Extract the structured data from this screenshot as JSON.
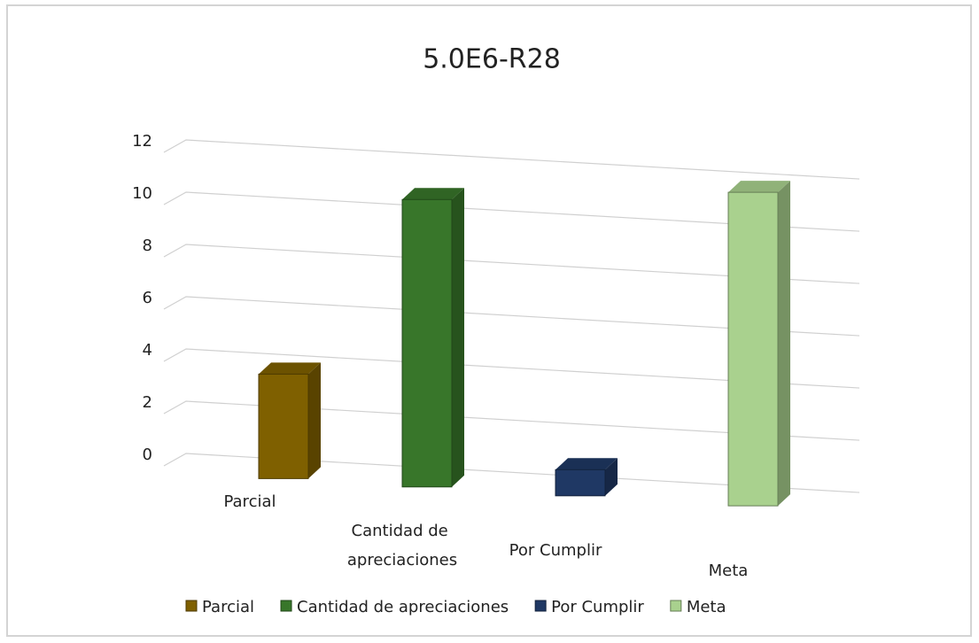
{
  "chart_data": {
    "type": "bar3d",
    "title": "5.0E6-R28",
    "categories": [
      "Parcial",
      "Cantidad de apreciaciones",
      "Por Cumplir",
      "Meta"
    ],
    "series": [
      {
        "name": "Parcial",
        "color": "#7f6000",
        "values": [
          4,
          null,
          null,
          null
        ]
      },
      {
        "name": "Cantidad de apreciaciones",
        "color": "#38762a",
        "values": [
          null,
          11,
          null,
          null
        ]
      },
      {
        "name": "Por Cumplir",
        "color": "#1f3864",
        "values": [
          null,
          null,
          1,
          null
        ]
      },
      {
        "name": "Meta",
        "color": "#a9d18e",
        "values": [
          null,
          null,
          null,
          12
        ]
      }
    ],
    "ylim": [
      0,
      12
    ],
    "yticks": [
      0,
      2,
      4,
      6,
      8,
      10,
      12
    ],
    "grid": true,
    "legend": "bottom"
  }
}
